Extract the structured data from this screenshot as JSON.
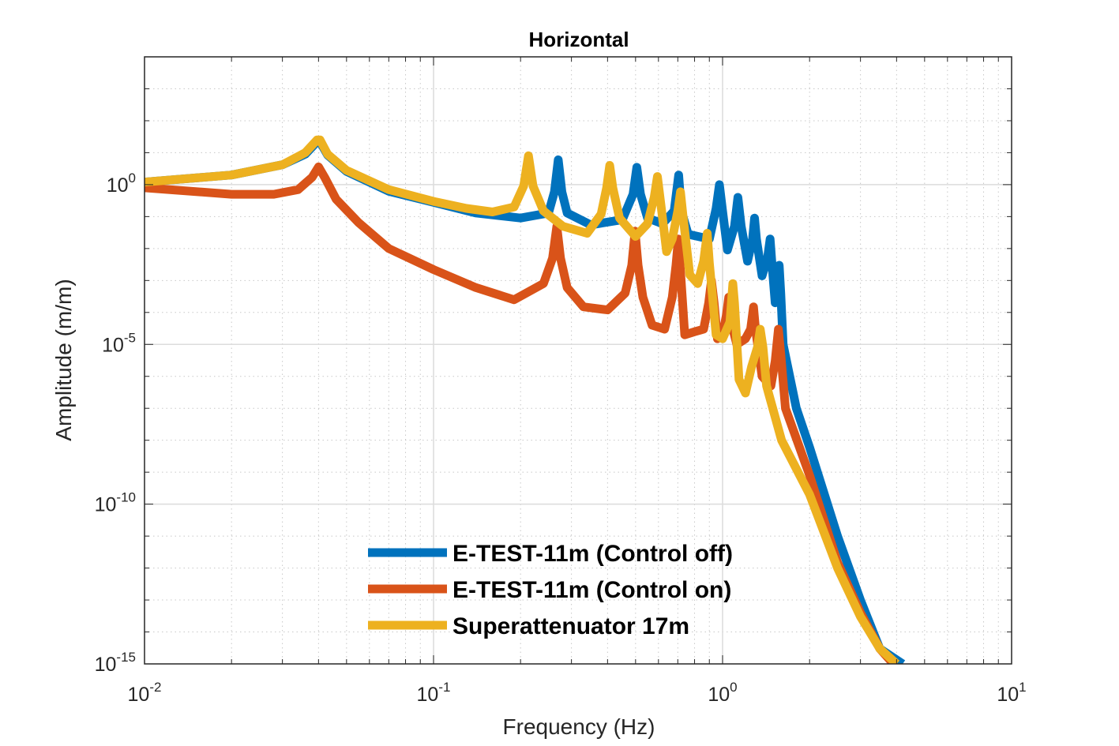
{
  "chart_data": {
    "type": "line",
    "title": "Horizontal",
    "xlabel": "Frequency (Hz)",
    "ylabel": "Amplitude (m/m)",
    "xscale": "log",
    "yscale": "log",
    "xlim": [
      0.01,
      10
    ],
    "ylim": [
      1e-15,
      10000
    ],
    "grid": true,
    "legend_position": "bottom-center",
    "x_ticks": [
      {
        "value": 0.01,
        "base": "10",
        "exp": "-2"
      },
      {
        "value": 0.1,
        "base": "10",
        "exp": "-1"
      },
      {
        "value": 1,
        "base": "10",
        "exp": "0"
      },
      {
        "value": 10,
        "base": "10",
        "exp": "1"
      }
    ],
    "y_ticks": [
      {
        "value": 1e-15,
        "base": "10",
        "exp": "-15"
      },
      {
        "value": 1e-10,
        "base": "10",
        "exp": "-10"
      },
      {
        "value": 1e-05,
        "base": "10",
        "exp": "-5"
      },
      {
        "value": 1,
        "base": "10",
        "exp": "0"
      }
    ],
    "series": [
      {
        "name": "E-TEST-11m (Control off)",
        "color": "#0072BD",
        "points": [
          [
            0.01,
            1.2
          ],
          [
            0.02,
            2.0
          ],
          [
            0.03,
            4.2
          ],
          [
            0.036,
            9.0
          ],
          [
            0.0395,
            22.0
          ],
          [
            0.0405,
            22.0
          ],
          [
            0.043,
            8.5
          ],
          [
            0.05,
            2.6
          ],
          [
            0.07,
            0.62
          ],
          [
            0.1,
            0.28
          ],
          [
            0.14,
            0.13
          ],
          [
            0.2,
            0.09
          ],
          [
            0.25,
            0.13
          ],
          [
            0.262,
            0.6
          ],
          [
            0.27,
            6.0
          ],
          [
            0.278,
            0.6
          ],
          [
            0.29,
            0.13
          ],
          [
            0.35,
            0.055
          ],
          [
            0.45,
            0.08
          ],
          [
            0.49,
            0.5
          ],
          [
            0.505,
            3.5
          ],
          [
            0.52,
            0.5
          ],
          [
            0.55,
            0.09
          ],
          [
            0.62,
            0.06
          ],
          [
            0.68,
            0.15
          ],
          [
            0.705,
            2.0
          ],
          [
            0.72,
            0.15
          ],
          [
            0.76,
            0.028
          ],
          [
            0.9,
            0.02
          ],
          [
            0.95,
            0.18
          ],
          [
            0.975,
            1.0
          ],
          [
            1.0,
            0.15
          ],
          [
            1.04,
            0.009
          ],
          [
            1.1,
            0.05
          ],
          [
            1.13,
            0.4
          ],
          [
            1.16,
            0.05
          ],
          [
            1.22,
            0.004
          ],
          [
            1.27,
            0.02
          ],
          [
            1.29,
            0.09
          ],
          [
            1.31,
            0.02
          ],
          [
            1.37,
            0.0014
          ],
          [
            1.43,
            0.005
          ],
          [
            1.46,
            0.02
          ],
          [
            1.48,
            0.004
          ],
          [
            1.52,
            0.0002
          ],
          [
            1.55,
            0.0008
          ],
          [
            1.57,
            0.003
          ],
          [
            1.59,
            0.0004
          ],
          [
            1.62,
            1e-05
          ],
          [
            1.8,
            1e-07
          ],
          [
            2.0,
            6e-09
          ],
          [
            2.5,
            1e-11
          ],
          [
            3.0,
            1e-13
          ],
          [
            3.5,
            3e-15
          ],
          [
            4.2,
            1e-15
          ]
        ]
      },
      {
        "name": "E-TEST-11m (Control on)",
        "color": "#D95319",
        "points": [
          [
            0.01,
            0.8
          ],
          [
            0.02,
            0.5
          ],
          [
            0.028,
            0.5
          ],
          [
            0.034,
            0.7
          ],
          [
            0.038,
            1.7
          ],
          [
            0.04,
            3.6
          ],
          [
            0.042,
            1.7
          ],
          [
            0.046,
            0.35
          ],
          [
            0.055,
            0.065
          ],
          [
            0.07,
            0.01
          ],
          [
            0.1,
            0.0022
          ],
          [
            0.14,
            0.0006
          ],
          [
            0.19,
            0.00025
          ],
          [
            0.24,
            0.0008
          ],
          [
            0.258,
            0.005
          ],
          [
            0.267,
            0.05
          ],
          [
            0.275,
            0.005
          ],
          [
            0.29,
            0.0006
          ],
          [
            0.33,
            0.00015
          ],
          [
            0.4,
            0.00012
          ],
          [
            0.46,
            0.0004
          ],
          [
            0.485,
            0.003
          ],
          [
            0.498,
            0.035
          ],
          [
            0.51,
            0.003
          ],
          [
            0.53,
            0.0003
          ],
          [
            0.57,
            4e-05
          ],
          [
            0.63,
            3e-05
          ],
          [
            0.67,
            0.0003
          ],
          [
            0.69,
            0.003
          ],
          [
            0.703,
            0.02
          ],
          [
            0.715,
            0.002
          ],
          [
            0.74,
            2e-05
          ],
          [
            0.8,
            2.5e-05
          ],
          [
            0.86,
            3e-05
          ],
          [
            0.895,
            0.0002
          ],
          [
            0.915,
            0.001
          ],
          [
            0.935,
            0.0002
          ],
          [
            0.96,
            1.5e-05
          ],
          [
            1.0,
            2e-05
          ],
          [
            1.03,
            8e-05
          ],
          [
            1.05,
            0.0003
          ],
          [
            1.07,
            5e-05
          ],
          [
            1.12,
            1e-05
          ],
          [
            1.2,
            1.5e-05
          ],
          [
            1.25,
            3e-05
          ],
          [
            1.28,
            0.00015
          ],
          [
            1.3,
            3e-05
          ],
          [
            1.37,
            1e-06
          ],
          [
            1.47,
            5e-07
          ],
          [
            1.52,
            3e-06
          ],
          [
            1.56,
            3e-05
          ],
          [
            1.59,
            5e-06
          ],
          [
            1.65,
            1e-07
          ],
          [
            2.0,
            8e-10
          ],
          [
            2.5,
            1.5e-12
          ],
          [
            3.0,
            4e-14
          ],
          [
            3.5,
            3e-15
          ],
          [
            3.9,
            1e-15
          ]
        ]
      },
      {
        "name": "Superattenuator 17m",
        "color": "#EDB120",
        "points": [
          [
            0.01,
            1.2
          ],
          [
            0.02,
            2.0
          ],
          [
            0.03,
            4.2
          ],
          [
            0.036,
            10.0
          ],
          [
            0.0395,
            25.0
          ],
          [
            0.0405,
            25.0
          ],
          [
            0.043,
            9.0
          ],
          [
            0.05,
            2.8
          ],
          [
            0.07,
            0.7
          ],
          [
            0.1,
            0.3
          ],
          [
            0.13,
            0.18
          ],
          [
            0.16,
            0.14
          ],
          [
            0.19,
            0.2
          ],
          [
            0.205,
            0.9
          ],
          [
            0.213,
            8.0
          ],
          [
            0.221,
            0.9
          ],
          [
            0.24,
            0.15
          ],
          [
            0.28,
            0.05
          ],
          [
            0.34,
            0.03
          ],
          [
            0.38,
            0.12
          ],
          [
            0.397,
            0.8
          ],
          [
            0.407,
            4.0
          ],
          [
            0.417,
            0.8
          ],
          [
            0.44,
            0.09
          ],
          [
            0.5,
            0.024
          ],
          [
            0.55,
            0.06
          ],
          [
            0.58,
            0.4
          ],
          [
            0.595,
            1.8
          ],
          [
            0.61,
            0.3
          ],
          [
            0.64,
            0.008
          ],
          [
            0.67,
            0.02
          ],
          [
            0.7,
            0.15
          ],
          [
            0.715,
            0.6
          ],
          [
            0.73,
            0.1
          ],
          [
            0.77,
            0.0015
          ],
          [
            0.82,
            0.0008
          ],
          [
            0.86,
            0.004
          ],
          [
            0.885,
            0.03
          ],
          [
            0.9,
            0.0035
          ],
          [
            0.95,
            2e-05
          ],
          [
            1.0,
            1.5e-05
          ],
          [
            1.06,
            5e-05
          ],
          [
            1.085,
            0.0008
          ],
          [
            1.1,
            0.0002
          ],
          [
            1.14,
            8e-07
          ],
          [
            1.2,
            3e-07
          ],
          [
            1.26,
            2e-06
          ],
          [
            1.32,
            8e-06
          ],
          [
            1.35,
            3e-05
          ],
          [
            1.38,
            8e-06
          ],
          [
            1.42,
            5e-07
          ],
          [
            1.6,
            1e-08
          ],
          [
            2.0,
            2e-10
          ],
          [
            2.5,
            1e-12
          ],
          [
            3.0,
            3e-14
          ],
          [
            3.5,
            3e-15
          ],
          [
            4.0,
            1e-15
          ]
        ]
      }
    ]
  }
}
